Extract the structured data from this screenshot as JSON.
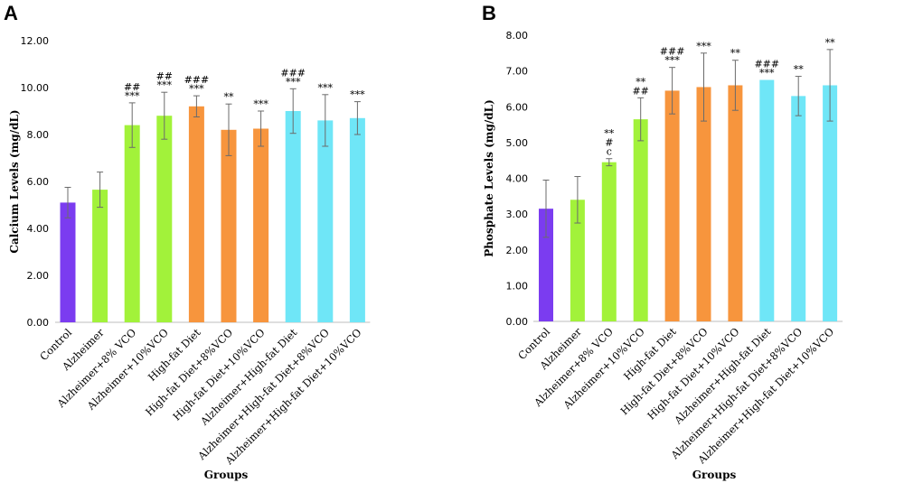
{
  "chart_data": [
    {
      "panel": "A",
      "type": "bar",
      "ylabel": "Calcium Levels  (mg/dL)",
      "xlabel": "Groups",
      "ylim": [
        0,
        12
      ],
      "yticks": [
        "0.00",
        "2.00",
        "4.00",
        "6.00",
        "8.00",
        "10.00",
        "12.00"
      ],
      "grid": false,
      "categories": [
        "Control",
        "Alzheimer",
        "Alzheimer+8% VCO",
        "Alzheimer+10%VCO",
        "High-fat Diet",
        "High-fat Diet+8%VCO",
        "High-fat Diet+10%VCO",
        "Alzheimer+High-fat Diet",
        "Alzheimer+High-fat Diet+8%VCO",
        "Alzheimer+High-fat Diet+10%VCO"
      ],
      "values": [
        5.1,
        5.65,
        8.4,
        8.8,
        9.2,
        8.2,
        8.25,
        9.0,
        8.6,
        8.7
      ],
      "errors": [
        0.65,
        0.75,
        0.95,
        1.0,
        0.45,
        1.1,
        0.75,
        0.95,
        1.1,
        0.7
      ],
      "bar_colors": [
        "#7b3cf0",
        "#a2f23a",
        "#a2f23a",
        "#a2f23a",
        "#f7953d",
        "#f7953d",
        "#f7953d",
        "#6fe6f7",
        "#6fe6f7",
        "#6fe6f7"
      ],
      "annotations": [
        [],
        [],
        [
          "##",
          "***"
        ],
        [
          "##",
          "***"
        ],
        [
          "###",
          "***"
        ],
        [
          "**"
        ],
        [
          "***"
        ],
        [
          "###",
          "***"
        ],
        [
          "***"
        ],
        [
          "***"
        ]
      ]
    },
    {
      "panel": "B",
      "type": "bar",
      "ylabel": "Phosphate Levels  (mg/dL)",
      "xlabel": "Groups",
      "ylim": [
        0,
        8
      ],
      "yticks": [
        "0.00",
        "1.00",
        "2.00",
        "3.00",
        "4.00",
        "5.00",
        "6.00",
        "7.00",
        "8.00"
      ],
      "grid": false,
      "categories": [
        "Control",
        "Alzheimer",
        "Alzheimer+8% VCO",
        "Alzheimer+10%VCO",
        "High-fat Diet",
        "High-fat Diet+8%VCO",
        "High-fat Diet+10%VCO",
        "Alzheimer+High-fat Diet",
        "Alzheimer+High-fat Diet+8%VCO",
        "Alzheimer+High-fat Diet+10%VCO"
      ],
      "values": [
        3.15,
        3.4,
        4.45,
        5.65,
        6.45,
        6.55,
        6.6,
        6.75,
        6.3,
        6.6
      ],
      "errors": [
        0.8,
        0.65,
        0.1,
        0.6,
        0.65,
        0.95,
        0.7,
        0.0,
        0.55,
        1.0
      ],
      "bar_colors": [
        "#7b3cf0",
        "#a2f23a",
        "#a2f23a",
        "#a2f23a",
        "#f7953d",
        "#f7953d",
        "#f7953d",
        "#6fe6f7",
        "#6fe6f7",
        "#6fe6f7"
      ],
      "annotations": [
        [],
        [],
        [
          "**",
          "#",
          "c"
        ],
        [
          "**",
          "##"
        ],
        [
          "###",
          "***"
        ],
        [
          "***"
        ],
        [
          "**"
        ],
        [
          "###",
          "***"
        ],
        [
          "**"
        ],
        [
          "**"
        ]
      ]
    }
  ]
}
